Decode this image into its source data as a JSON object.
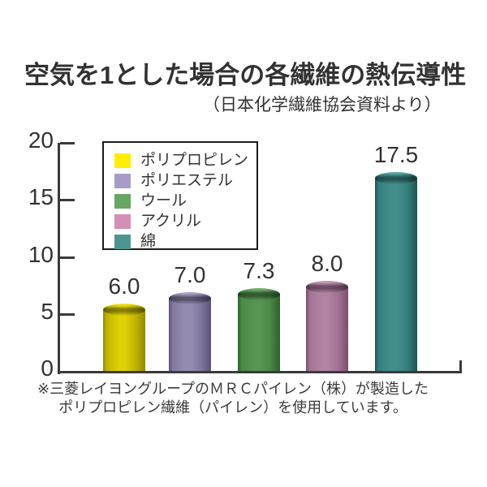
{
  "page": {
    "title": "空気を1とした場合の各繊維の熱伝導性",
    "subtitle": "（日本化学繊維協会資料より）",
    "footnote_line1": "※三菱レイヨングループのＭＲＣパイレン（株）が製造した",
    "footnote_line2": "ポリプロピレン繊維（パイレン）を使用しています。"
  },
  "colors": {
    "background": "#ffffff",
    "text": "#323232",
    "axis": "#3a3a3a",
    "legend_border": "#1c1c1c"
  },
  "chart_data": {
    "type": "bar",
    "bar_style": "3d-cylinder",
    "title": "空気を1とした場合の各繊維の熱伝導性",
    "subtitle": "（日本化学繊維協会資料より）",
    "categories": [
      "ポリプロピレン",
      "ポリエステル",
      "ウール",
      "アクリル",
      "綿"
    ],
    "values": [
      6.0,
      7.0,
      7.3,
      8.0,
      17.5
    ],
    "value_labels": [
      "6.0",
      "7.0",
      "7.3",
      "8.0",
      "17.5"
    ],
    "ylim": [
      0,
      20
    ],
    "yticks": [
      0,
      5,
      10,
      15,
      20
    ],
    "grid": false,
    "legend_position": "upper-left-inside",
    "series": [
      {
        "name": "ポリプロピレン",
        "value": 6.0,
        "label": "6.0",
        "legend_color": "#ffee00",
        "body_light": "#dfd104",
        "body_mid": "#c2b500",
        "body_dark": "#938800",
        "rim_light": "#f2e500"
      },
      {
        "name": "ポリエステル",
        "value": 7.0,
        "label": "7.0",
        "legend_color": "#a89cc6",
        "body_light": "#958cb1",
        "body_mid": "#81779e",
        "body_dark": "#5b5178",
        "rim_light": "#a79ec0"
      },
      {
        "name": "ウール",
        "value": 7.3,
        "label": "7.3",
        "legend_color": "#68a761",
        "body_light": "#579552",
        "body_mid": "#4a8846",
        "body_dark": "#30602f",
        "rim_light": "#6fae68"
      },
      {
        "name": "アクリル",
        "value": 8.0,
        "label": "8.0",
        "legend_color": "#d48fb4",
        "body_light": "#b282a2",
        "body_mid": "#a27394",
        "body_dark": "#7b4e6d",
        "rim_light": "#c494b5"
      },
      {
        "name": "綿",
        "value": 17.5,
        "label": "17.5",
        "legend_color": "#4f948e",
        "body_light": "#418e8b",
        "body_mid": "#35807e",
        "body_dark": "#215352",
        "rim_light": "#4f9d9a"
      }
    ]
  }
}
